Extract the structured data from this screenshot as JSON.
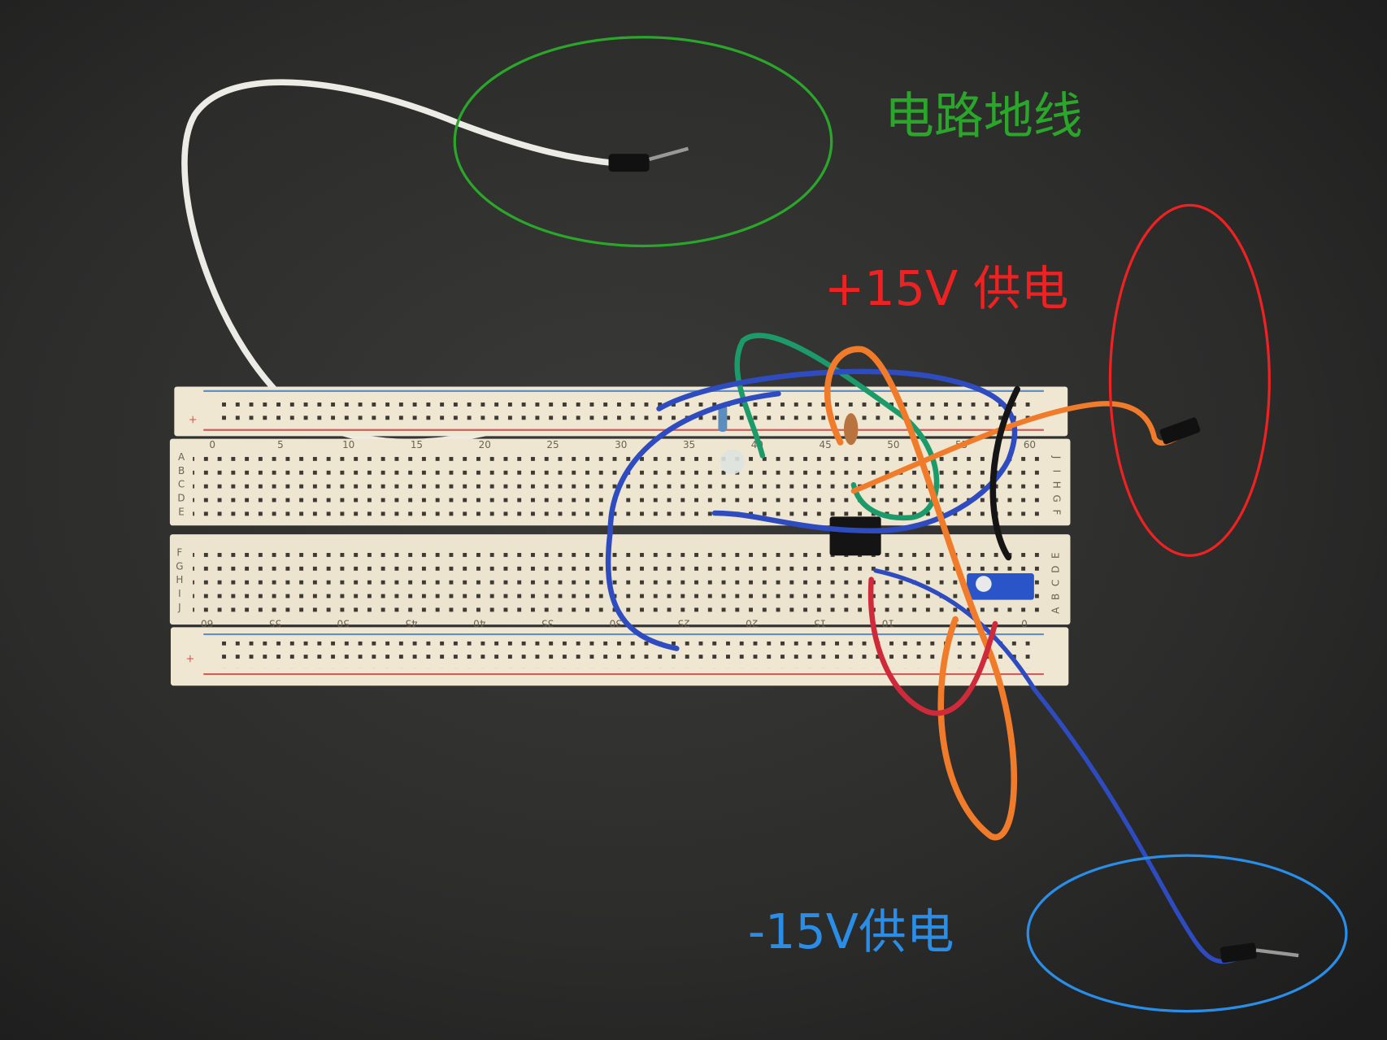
{
  "labels": {
    "ground": "电路地线",
    "positive": "+15V 供电",
    "negative": "-15V供电"
  },
  "breadboard": {
    "top_columns": [
      "0",
      "5",
      "10",
      "15",
      "20",
      "25",
      "30",
      "35",
      "40",
      "45",
      "50",
      "55",
      "60"
    ],
    "bottom_columns": [
      "0",
      "5",
      "10",
      "15",
      "20",
      "25",
      "30",
      "35",
      "40",
      "45",
      "50",
      "55",
      "60"
    ],
    "upper_rows_left": [
      "A",
      "B",
      "C",
      "D",
      "E"
    ],
    "upper_rows_right": [
      "J",
      "I",
      "H",
      "G",
      "F"
    ],
    "lower_rows_left": [
      "F",
      "G",
      "H",
      "I",
      "J"
    ],
    "lower_rows_right": [
      "E",
      "D",
      "C",
      "B",
      "A"
    ]
  }
}
